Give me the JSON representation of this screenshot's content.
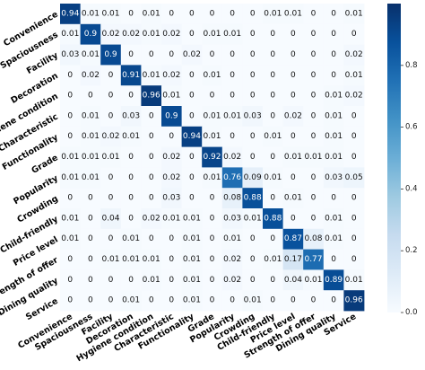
{
  "chart_data": {
    "type": "heatmap",
    "title": "",
    "xlabel": "",
    "ylabel": "",
    "categories": [
      "Convenience",
      "Spaciousness",
      "Facility",
      "Decoration",
      "Hygiene condition",
      "Characteristic",
      "Functionality",
      "Grade",
      "Popularity",
      "Crowding",
      "Child-friendly",
      "Price level",
      "Strength of offer",
      "Dining quality",
      "Service"
    ],
    "values": [
      [
        0.94,
        0.01,
        0.01,
        0,
        0.01,
        0,
        0,
        0,
        0,
        0,
        0.01,
        0.01,
        0,
        0,
        0.01
      ],
      [
        0.01,
        0.9,
        0.02,
        0.02,
        0.01,
        0.02,
        0,
        0.01,
        0.01,
        0,
        0,
        0,
        0,
        0,
        0
      ],
      [
        0.03,
        0.01,
        0.9,
        0,
        0,
        0,
        0.02,
        0,
        0,
        0,
        0,
        0,
        0,
        0,
        0.02
      ],
      [
        0,
        0.02,
        0,
        0.91,
        0.01,
        0.02,
        0,
        0.01,
        0,
        0,
        0,
        0,
        0,
        0,
        0.01
      ],
      [
        0,
        0,
        0,
        0,
        0.96,
        0.01,
        0,
        0,
        0,
        0,
        0,
        0,
        0,
        0.01,
        0.02
      ],
      [
        0,
        0.01,
        0,
        0.03,
        0,
        0.9,
        0,
        0.01,
        0.01,
        0.03,
        0,
        0.02,
        0,
        0.01,
        0
      ],
      [
        0,
        0.01,
        0.02,
        0.01,
        0,
        0,
        0.94,
        0.01,
        0,
        0,
        0.01,
        0,
        0,
        0.01,
        0
      ],
      [
        0.01,
        0.01,
        0.01,
        0,
        0,
        0.02,
        0,
        0.92,
        0.02,
        0,
        0,
        0.01,
        0.01,
        0.01,
        0
      ],
      [
        0.01,
        0.01,
        0,
        0,
        0,
        0.02,
        0,
        0.01,
        0.76,
        0.09,
        0.01,
        0,
        0,
        0.03,
        0.05
      ],
      [
        0,
        0,
        0,
        0,
        0,
        0.03,
        0,
        0,
        0.08,
        0.88,
        0,
        0.01,
        0,
        0,
        0
      ],
      [
        0.01,
        0,
        0.04,
        0,
        0.02,
        0.01,
        0.01,
        0,
        0.03,
        0.01,
        0.88,
        0,
        0,
        0.01,
        0
      ],
      [
        0.01,
        0,
        0,
        0.01,
        0,
        0,
        0.01,
        0,
        0.01,
        0,
        0,
        0.87,
        0.08,
        0.01,
        0
      ],
      [
        0,
        0,
        0.01,
        0.01,
        0.01,
        0,
        0.01,
        0,
        0.02,
        0,
        0.01,
        0.17,
        0.77,
        0,
        0
      ],
      [
        0,
        0,
        0,
        0,
        0.01,
        0,
        0.01,
        0,
        0.02,
        0,
        0,
        0.04,
        0.01,
        0.89,
        0.01
      ],
      [
        0,
        0,
        0,
        0.01,
        0,
        0,
        0.01,
        0,
        0,
        0.01,
        0,
        0,
        0,
        0,
        0.96
      ]
    ],
    "colorscale": {
      "low": "#f7fbff",
      "high": "#08306b",
      "name": "Blues"
    },
    "colorbar": {
      "range": [
        0,
        1
      ],
      "ticks": [
        "0.0",
        "0.2",
        "0.4",
        "0.6",
        "0.8"
      ]
    },
    "grid": false,
    "legend": "colorbar-right"
  }
}
